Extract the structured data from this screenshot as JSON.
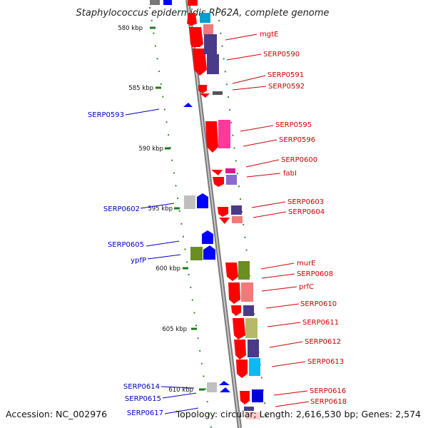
{
  "title": "Staphylococcus epidermidis RP62A, complete genome",
  "footer": {
    "accession": "Accession: NC_002976",
    "topology": "Topology: circular; Length: 2,616,530 bp; Genes: 2,574"
  },
  "ticks": [
    "580 kbp",
    "585 kbp",
    "590 kbp",
    "595 kbp",
    "600 kbp",
    "605 kbp",
    "610 kbp"
  ],
  "labels_forward": [
    "mgtE",
    "SERP0590",
    "SERP0591",
    "SERP0592",
    "SERP0595",
    "SERP0596",
    "SERP0600",
    "fabI",
    "SERP0603",
    "SERP0604",
    "murE",
    "SERP0608",
    "prfC",
    "SERP0610",
    "SERP0611",
    "SERP0612",
    "SERP0613",
    "SERP0616",
    "SERP0618"
  ],
  "labels_reverse": [
    "SERP0593",
    "SERP0602",
    "SERP0605",
    "ypfP",
    "SERP0614",
    "SERP0615",
    "SERP0617"
  ],
  "colors": {
    "forward_label": "#cc0000",
    "reverse_label": "#0000bb",
    "forward_gene": "#ff0000",
    "reverse_gene": "#0000ff",
    "backbone": "#8a8a8a",
    "tick_marks": "#228b22"
  }
}
